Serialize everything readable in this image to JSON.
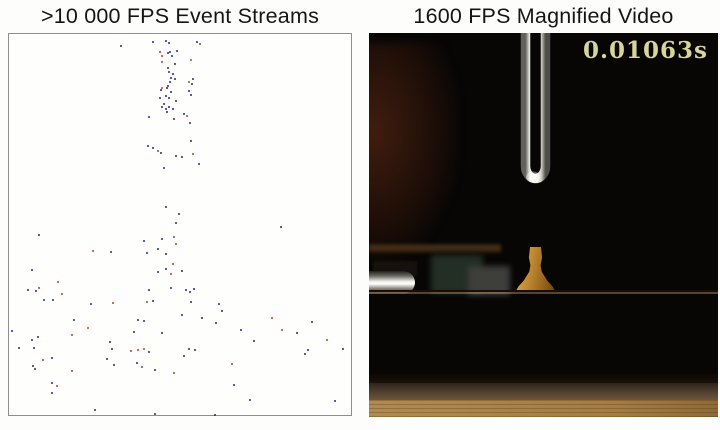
{
  "left_panel": {
    "title": ">10 000 FPS Event Streams",
    "border_color": "#8e8e8e",
    "background": "#fefefd"
  },
  "right_panel": {
    "title": "1600 FPS Magnified Video",
    "timestamp": "0.01063s",
    "timestamp_color": "#d9d49c",
    "scene_colors": {
      "background": "#070605",
      "mount_knob": "#bd8630",
      "wood_block": "#a97a45",
      "table": "#a57d42",
      "fork_highlight": "#ffffff"
    }
  },
  "chart_data": {
    "type": "scatter",
    "title": ">10 000 FPS Event Streams",
    "xlabel": "",
    "ylabel": "",
    "x_range": [
      0,
      342
    ],
    "y_range": [
      0,
      381
    ],
    "grid": false,
    "legend": "none",
    "description": "Sparse event-camera dots; dense vertical stream near top-center fanning out toward the bottom",
    "series": [
      {
        "name": "negative-polarity-events",
        "color": "#23278f",
        "points": [
          [
            143,
            7
          ],
          [
            156,
            6
          ],
          [
            159,
            8
          ],
          [
            187,
            7
          ],
          [
            158,
            18
          ],
          [
            160,
            17
          ],
          [
            158,
            33
          ],
          [
            159,
            37
          ],
          [
            161,
            43
          ],
          [
            160,
            47
          ],
          [
            182,
            49
          ],
          [
            151,
            55
          ],
          [
            157,
            53
          ],
          [
            161,
            57
          ],
          [
            179,
            56
          ],
          [
            150,
            63
          ],
          [
            156,
            61
          ],
          [
            152,
            72
          ],
          [
            156,
            74
          ],
          [
            174,
            79
          ],
          [
            111,
            11
          ],
          [
            167,
            16
          ],
          [
            162,
            21
          ],
          [
            165,
            29
          ],
          [
            163,
            39
          ],
          [
            165,
            44
          ],
          [
            158,
            51
          ],
          [
            159,
            63
          ],
          [
            166,
            66
          ],
          [
            154,
            69
          ],
          [
            159,
            72
          ],
          [
            163,
            74
          ],
          [
            157,
            77
          ],
          [
            139,
            82
          ],
          [
            164,
            84
          ],
          [
            138,
            111
          ],
          [
            143,
            113
          ],
          [
            151,
            118
          ],
          [
            166,
            121
          ],
          [
            183,
            44
          ],
          [
            181,
            60
          ],
          [
            180,
            88
          ],
          [
            181,
            106
          ],
          [
            172,
            122
          ],
          [
            189,
            129
          ],
          [
            154,
            133
          ],
          [
            156,
            172
          ],
          [
            166,
            188
          ],
          [
            29,
            200
          ],
          [
            134,
            206
          ],
          [
            152,
            204
          ],
          [
            101,
            217
          ],
          [
            137,
            218
          ],
          [
            148,
            214
          ],
          [
            156,
            219
          ],
          [
            22,
            235
          ],
          [
            148,
            237
          ],
          [
            156,
            234
          ],
          [
            18,
            255
          ],
          [
            26,
            256
          ],
          [
            139,
            255
          ],
          [
            161,
            253
          ],
          [
            169,
            179
          ],
          [
            271,
            192
          ],
          [
            172,
            236
          ],
          [
            176,
            255
          ],
          [
            180,
            257
          ],
          [
            184,
            254
          ],
          [
            34,
            265
          ],
          [
            43,
            265
          ],
          [
            81,
            269
          ],
          [
            143,
            266
          ],
          [
            64,
            285
          ],
          [
            128,
            285
          ],
          [
            134,
            286
          ],
          [
            2,
            296
          ],
          [
            28,
            302
          ],
          [
            124,
            297
          ],
          [
            152,
            298
          ],
          [
            9,
            313
          ],
          [
            22,
            305
          ],
          [
            24,
            313
          ],
          [
            100,
            307
          ],
          [
            102,
            314
          ],
          [
            139,
            317
          ],
          [
            42,
            323
          ],
          [
            97,
            324
          ],
          [
            127,
            328
          ],
          [
            23,
            331
          ],
          [
            25,
            334
          ],
          [
            104,
            330
          ],
          [
            145,
            335
          ],
          [
            42,
            348
          ],
          [
            42,
            358
          ],
          [
            85,
            375
          ],
          [
            181,
            267
          ],
          [
            209,
            269
          ],
          [
            172,
            280
          ],
          [
            192,
            283
          ],
          [
            212,
            276
          ],
          [
            206,
            288
          ],
          [
            231,
            295
          ],
          [
            287,
            298
          ],
          [
            302,
            287
          ],
          [
            244,
            306
          ],
          [
            179,
            314
          ],
          [
            185,
            315
          ],
          [
            174,
            321
          ],
          [
            298,
            315
          ],
          [
            333,
            314
          ],
          [
            295,
            319
          ],
          [
            224,
            350
          ],
          [
            240,
            365
          ],
          [
            325,
            366
          ],
          [
            205,
            380
          ],
          [
            145,
            379
          ]
        ],
        "marker_size": 2
      },
      {
        "name": "positive-polarity-events",
        "color": "#bf3a28",
        "points": [
          [
            190,
            9
          ],
          [
            150,
            17
          ],
          [
            152,
            21
          ],
          [
            152,
            27
          ],
          [
            181,
            25
          ],
          [
            179,
            47
          ],
          [
            152,
            53
          ],
          [
            148,
            116
          ],
          [
            177,
            81
          ],
          [
            183,
            119
          ],
          [
            164,
            202
          ],
          [
            166,
            209
          ],
          [
            83,
            216
          ],
          [
            163,
            229
          ],
          [
            161,
            239
          ],
          [
            48,
            247
          ],
          [
            29,
            253
          ],
          [
            52,
            259
          ],
          [
            103,
            268
          ],
          [
            137,
            267
          ],
          [
            62,
            300
          ],
          [
            78,
            293
          ],
          [
            121,
            316
          ],
          [
            128,
            315
          ],
          [
            134,
            314
          ],
          [
            33,
            325
          ],
          [
            62,
            336
          ],
          [
            132,
            332
          ],
          [
            164,
            338
          ],
          [
            47,
            351
          ],
          [
            262,
            283
          ],
          [
            272,
            295
          ],
          [
            317,
            305
          ],
          [
            222,
            329
          ]
        ],
        "marker_size": 2
      }
    ]
  }
}
